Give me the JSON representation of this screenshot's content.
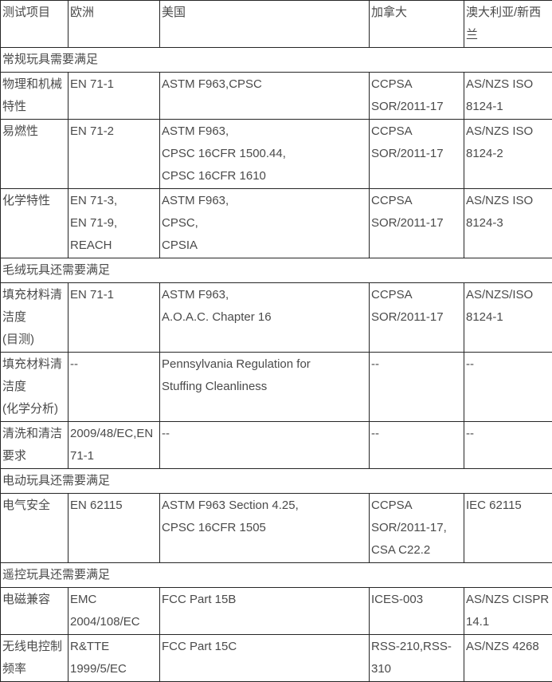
{
  "table": {
    "header": [
      "测试项目",
      "欧洲",
      "美国",
      "加拿大",
      "澳大利亚/新西\n兰"
    ],
    "sections": [
      {
        "title": "常规玩具需要满足",
        "rows": [
          [
            "物理和机械\n特性",
            "EN 71-1",
            "ASTM F963,CPSC",
            "CCPSA\nSOR/2011-17",
            "AS/NZS ISO\n8124-1"
          ],
          [
            "易燃性",
            "EN 71-2",
            "ASTM F963,\nCPSC 16CFR 1500.44,\nCPSC 16CFR 1610",
            "CCPSA\nSOR/2011-17",
            "AS/NZS ISO\n8124-2"
          ],
          [
            "化学特性",
            "EN 71-3,\nEN 71-9,\nREACH",
            "ASTM F963,\nCPSC,\nCPSIA",
            "CCPSA\nSOR/2011-17",
            "AS/NZS ISO\n8124-3"
          ]
        ]
      },
      {
        "title": "毛绒玩具还需要满足",
        "rows": [
          [
            "填充材料清\n洁度\n(目测)",
            "EN 71-1",
            "ASTM F963,\nA.O.A.C. Chapter 16",
            "CCPSA\nSOR/2011-17",
            "AS/NZS/ISO\n8124-1"
          ],
          [
            "填充材料清\n洁度\n(化学分析)",
            "--",
            "Pennsylvania Regulation for\nStuffing Cleanliness",
            "--",
            "--"
          ],
          [
            "清洗和清洁\n要求",
            "2009/48/EC,EN\n71-1",
            "--",
            "--",
            "--"
          ]
        ]
      },
      {
        "title": "电动玩具还需要满足",
        "rows": [
          [
            "电气安全",
            "EN 62115",
            "ASTM F963 Section 4.25,\nCPSC 16CFR 1505",
            "CCPSA\nSOR/2011-17,\nCSA C22.2",
            "IEC 62115"
          ]
        ]
      },
      {
        "title": "遥控玩具还需要满足",
        "rows": [
          [
            "电磁兼容",
            "EMC\n2004/108/EC",
            "FCC Part 15B",
            "ICES-003",
            "AS/NZS CISPR\n14.1"
          ],
          [
            "无线电控制\n频率",
            "R&TTE\n1999/5/EC",
            "FCC Part 15C",
            "RSS-210,RSS-\n310",
            "AS/NZS 4268"
          ]
        ]
      }
    ]
  }
}
